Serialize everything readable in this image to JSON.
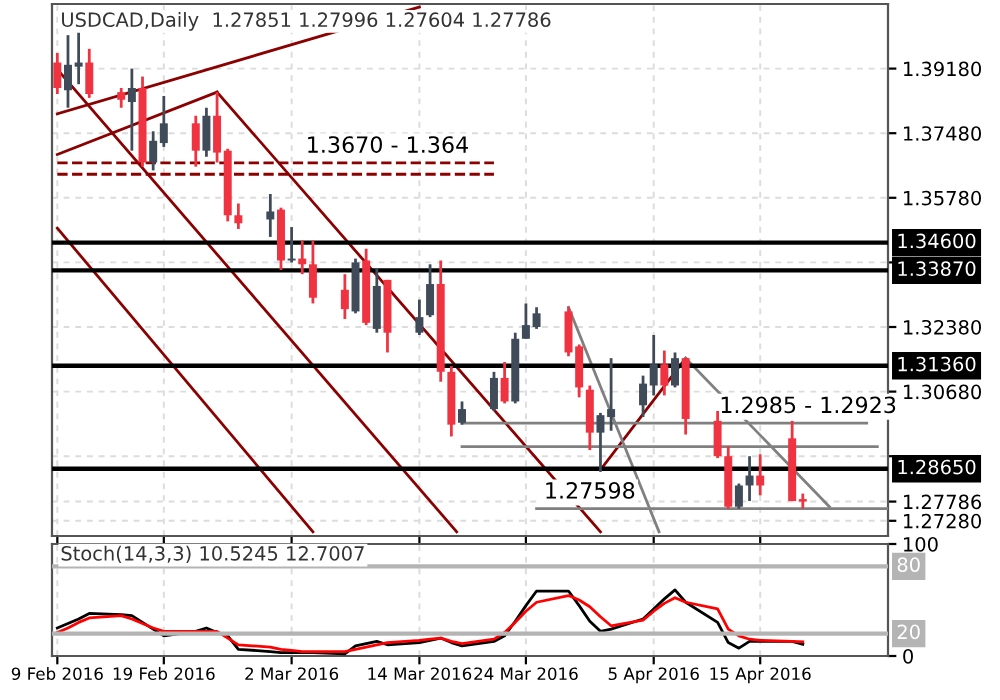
{
  "chart_data": [
    {
      "type": "candlestick",
      "title": "USDCAD,Daily  1.27851 1.27996 1.27604 1.27786",
      "x": [
        "2016-02-09",
        "2016-02-10",
        "2016-02-11",
        "2016-02-12",
        "2016-02-15",
        "2016-02-16",
        "2016-02-17",
        "2016-02-18",
        "2016-02-19",
        "2016-02-22",
        "2016-02-23",
        "2016-02-24",
        "2016-02-25",
        "2016-02-26",
        "2016-02-29",
        "2016-03-01",
        "2016-03-02",
        "2016-03-03",
        "2016-03-04",
        "2016-03-07",
        "2016-03-08",
        "2016-03-09",
        "2016-03-10",
        "2016-03-11",
        "2016-03-14",
        "2016-03-15",
        "2016-03-16",
        "2016-03-17",
        "2016-03-18",
        "2016-03-21",
        "2016-03-22",
        "2016-03-23",
        "2016-03-24",
        "2016-03-25",
        "2016-03-28",
        "2016-03-29",
        "2016-03-30",
        "2016-03-31",
        "2016-04-01",
        "2016-04-04",
        "2016-04-05",
        "2016-04-06",
        "2016-04-07",
        "2016-04-08",
        "2016-04-11",
        "2016-04-12",
        "2016-04-13",
        "2016-04-14",
        "2016-04-15",
        "2016-04-18",
        "2016-04-19"
      ],
      "ohlc": [
        [
          1.3934,
          1.3959,
          1.3851,
          1.3867
        ],
        [
          1.3861,
          1.4006,
          1.3815,
          1.3928
        ],
        [
          1.3923,
          1.4021,
          1.3877,
          1.3934
        ],
        [
          1.3934,
          1.397,
          1.3841,
          1.3851
        ],
        [
          1.3856,
          1.3867,
          1.3815,
          1.3836
        ],
        [
          1.383,
          1.3918,
          1.3702,
          1.3867
        ],
        [
          1.3867,
          1.3897,
          1.366,
          1.3671
        ],
        [
          1.3671,
          1.3753,
          1.365,
          1.3728
        ],
        [
          1.3722,
          1.3846,
          1.3712,
          1.3774
        ],
        [
          1.3774,
          1.3794,
          1.366,
          1.3702
        ],
        [
          1.3702,
          1.3815,
          1.3686,
          1.3794
        ],
        [
          1.3794,
          1.3856,
          1.3671,
          1.3697
        ],
        [
          1.3702,
          1.3707,
          1.3516,
          1.3532
        ],
        [
          1.3532,
          1.3563,
          1.3496,
          1.3511
        ],
        [
          1.3521,
          1.3588,
          1.3475,
          1.3542
        ],
        [
          1.3547,
          1.3552,
          1.3388,
          1.3413
        ],
        [
          1.3413,
          1.3501,
          1.3408,
          1.3418
        ],
        [
          1.3418,
          1.3465,
          1.3377,
          1.3403
        ],
        [
          1.3403,
          1.3465,
          1.33,
          1.3315
        ],
        [
          1.3336,
          1.3377,
          1.3259,
          1.3285
        ],
        [
          1.3279,
          1.3418,
          1.3274,
          1.3408
        ],
        [
          1.3413,
          1.3444,
          1.3243,
          1.3249
        ],
        [
          1.3233,
          1.3393,
          1.3223,
          1.3346
        ],
        [
          1.3362,
          1.3362,
          1.3171,
          1.3223
        ],
        [
          1.3223,
          1.331,
          1.3217,
          1.3264
        ],
        [
          1.3269,
          1.3403,
          1.3264,
          1.3351
        ],
        [
          1.3351,
          1.3413,
          1.3094,
          1.312
        ],
        [
          1.312,
          1.3135,
          1.295,
          1.2981
        ],
        [
          1.2986,
          1.3042,
          1.2981,
          1.3022
        ],
        [
          1.3022,
          1.312,
          1.3017,
          1.3104
        ],
        [
          1.3104,
          1.3146,
          1.3037,
          1.3042
        ],
        [
          1.3042,
          1.3223,
          1.3037,
          1.3207
        ],
        [
          1.3207,
          1.33,
          1.3207,
          1.3243
        ],
        [
          1.3238,
          1.329,
          1.3233,
          1.3274
        ],
        [
          1.3279,
          1.329,
          1.3161,
          1.3171
        ],
        [
          1.3187,
          1.3192,
          1.3053,
          1.3079
        ],
        [
          1.3073,
          1.3084,
          1.2914,
          1.296
        ],
        [
          1.296,
          1.3012,
          1.2857,
          1.3006
        ],
        [
          1.3001,
          1.3156,
          1.2965,
          1.3022
        ],
        [
          1.3032,
          1.311,
          1.3001,
          1.3089
        ],
        [
          1.3084,
          1.3217,
          1.3058,
          1.314
        ],
        [
          1.314,
          1.3176,
          1.3058,
          1.3084
        ],
        [
          1.3084,
          1.3171,
          1.3079,
          1.3156
        ],
        [
          1.3156,
          1.3156,
          1.2955,
          1.2996
        ],
        [
          1.2991,
          1.3017,
          1.2893,
          1.2898
        ],
        [
          1.2898,
          1.2924,
          1.276,
          1.2765
        ],
        [
          1.2765,
          1.2826,
          1.276,
          1.2821
        ],
        [
          1.2821,
          1.2898,
          1.278,
          1.2847
        ],
        [
          1.2847,
          1.2903,
          1.2795,
          1.2821
        ],
        [
          1.2945,
          1.2991,
          1.278,
          1.278
        ],
        [
          1.27851,
          1.27996,
          1.27604,
          1.27786
        ]
      ],
      "colors": [
        "#ef3340",
        "#404b5a",
        "#404b5a",
        "#ef3340",
        "#ef3340",
        "#404b5a",
        "#ef3340",
        "#404b5a",
        "#404b5a",
        "#ef3340",
        "#404b5a",
        "#ef3340",
        "#ef3340",
        "#ef3340",
        "#404b5a",
        "#ef3340",
        "#404b5a",
        "#ef3340",
        "#ef3340",
        "#ef3340",
        "#404b5a",
        "#ef3340",
        "#404b5a",
        "#ef3340",
        "#404b5a",
        "#404b5a",
        "#ef3340",
        "#ef3340",
        "#404b5a",
        "#404b5a",
        "#ef3340",
        "#404b5a",
        "#404b5a",
        "#404b5a",
        "#ef3340",
        "#ef3340",
        "#ef3340",
        "#404b5a",
        "#404b5a",
        "#404b5a",
        "#404b5a",
        "#ef3340",
        "#404b5a",
        "#ef3340",
        "#ef3340",
        "#ef3340",
        "#404b5a",
        "#404b5a",
        "#ef3340",
        "#ef3340",
        "#ef3340"
      ],
      "series": [
        {
          "type": "line",
          "x": [
            "2016-02-09",
            "2016-03-14"
          ],
          "values": [
            1.3799,
            1.408
          ],
          "color": "#8b0000"
        },
        {
          "type": "line",
          "x": [
            "2016-02-09",
            "2016-02-24"
          ],
          "values": [
            1.3692,
            1.3856
          ],
          "color": "#8b0000"
        },
        {
          "type": "line",
          "x": [
            "2016-02-24",
            "2016-03-31"
          ],
          "values": [
            1.3856,
            1.2699
          ],
          "color": "#8b0000"
        },
        {
          "type": "line",
          "x": [
            "2016-02-09",
            "2016-03-04"
          ],
          "values": [
            1.3498,
            1.2699
          ],
          "color": "#8b0000"
        },
        {
          "type": "line",
          "x": [
            "2016-02-09",
            "2016-03-17T12:00"
          ],
          "values": [
            1.3916,
            1.2699
          ],
          "color": "#8b0000"
        },
        {
          "type": "line",
          "x": [
            "2016-03-31",
            "2016-04-08"
          ],
          "values": [
            1.2862,
            1.3156
          ],
          "color": "#8b0000"
        },
        {
          "type": "line",
          "x": [
            "2016-03-28",
            "2016-04-05T12:00"
          ],
          "values": [
            1.329,
            1.2699
          ],
          "color": "#808080"
        },
        {
          "type": "line",
          "x": [
            "2016-04-08",
            "2016-04-21T12:00"
          ],
          "values": [
            1.3156,
            1.2765
          ],
          "color": "#808080"
        },
        {
          "type": "line",
          "x": [
            "2016-02-09",
            "2016-03-21"
          ],
          "values": [
            1.367,
            1.367
          ],
          "color": "#8b0000",
          "line_style": "dashed"
        },
        {
          "type": "line",
          "x": [
            "2016-02-09",
            "2016-03-21"
          ],
          "values": [
            1.364,
            1.364
          ],
          "color": "#8b0000",
          "line_style": "dashed"
        },
        {
          "type": "line",
          "x": [
            "2016-03-18",
            "2016-04-25"
          ],
          "values": [
            1.2985,
            1.2985
          ],
          "color": "#808080"
        },
        {
          "type": "line",
          "x": [
            "2016-03-18",
            "2016-04-26"
          ],
          "values": [
            1.2923,
            1.2923
          ],
          "color": "#808080"
        },
        {
          "type": "line",
          "x": [
            "2016-03-25",
            "2016-04-27"
          ],
          "values": [
            1.276,
            1.276
          ],
          "color": "#808080"
        }
      ],
      "ref_lines": [
        {
          "axis": "y",
          "value": 1.346,
          "label": "1.34600",
          "color": "#000000"
        },
        {
          "axis": "y",
          "value": 1.3387,
          "label": "1.33870",
          "color": "#000000"
        },
        {
          "axis": "y",
          "value": 1.3136,
          "label": "1.31360",
          "color": "#000000"
        },
        {
          "axis": "y",
          "value": 1.2865,
          "label": "1.28650",
          "color": "#000000"
        }
      ],
      "annotations": [
        {
          "text": "1.3670 - 1.364",
          "x": "2016-03-11",
          "y": 1.367
        },
        {
          "text": "1.2985 - 1.2923",
          "x": "2016-04-19T12:00",
          "y": 1.2985
        },
        {
          "text": "1.27598",
          "x": "2016-03-30",
          "y": 1.27598
        }
      ],
      "xlim": [
        "2016-02-08T12:00",
        "2016-04-27"
      ],
      "xticks": [
        {
          "value": "2016-02-09",
          "label": null
        },
        {
          "value": "2016-02-19",
          "label": null
        },
        {
          "value": "2016-03-02",
          "label": null
        },
        {
          "value": "2016-03-14",
          "label": null
        },
        {
          "value": "2016-03-24",
          "label": null
        },
        {
          "value": "2016-04-05",
          "label": null
        },
        {
          "value": "2016-04-15",
          "label": null
        }
      ],
      "ylim": [
        1.2688,
        1.4088
      ],
      "yticks": [
        {
          "value": 1.3918,
          "label": "1.39180"
        },
        {
          "value": 1.3748,
          "label": "1.37480"
        },
        {
          "value": 1.3578,
          "label": "1.35780"
        },
        {
          "value": 1.3408,
          "label": null
        },
        {
          "value": 1.3238,
          "label": "1.32380"
        },
        {
          "value": 1.3068,
          "label": "1.30680"
        },
        {
          "value": 1.2898,
          "label": null
        },
        {
          "value": 1.27786,
          "label": "1.27786"
        },
        {
          "value": 1.2728,
          "label": "1.27280"
        }
      ],
      "grid": true,
      "tick_labels": "y"
    },
    {
      "type": "line",
      "title": "Stoch(14,3,3) 10.5245 12.7007",
      "x": [
        "2016-02-09",
        "2016-02-10",
        "2016-02-11",
        "2016-02-12",
        "2016-02-15",
        "2016-02-16",
        "2016-02-17",
        "2016-02-18",
        "2016-02-19",
        "2016-02-22",
        "2016-02-23",
        "2016-02-24",
        "2016-02-25",
        "2016-02-26",
        "2016-02-29",
        "2016-03-01",
        "2016-03-02",
        "2016-03-03",
        "2016-03-04",
        "2016-03-07",
        "2016-03-08",
        "2016-03-09",
        "2016-03-10",
        "2016-03-11",
        "2016-03-14",
        "2016-03-15",
        "2016-03-16",
        "2016-03-17",
        "2016-03-18",
        "2016-03-21",
        "2016-03-22",
        "2016-03-23",
        "2016-03-24",
        "2016-03-25",
        "2016-03-28",
        "2016-03-29",
        "2016-03-30",
        "2016-03-31",
        "2016-04-01",
        "2016-04-04",
        "2016-04-05",
        "2016-04-06",
        "2016-04-07",
        "2016-04-08",
        "2016-04-11",
        "2016-04-12",
        "2016-04-13",
        "2016-04-14",
        "2016-04-15",
        "2016-04-18",
        "2016-04-19"
      ],
      "series": [
        {
          "color": "#000000",
          "values": [
            25,
            29,
            33,
            38,
            37,
            36,
            30,
            24,
            18,
            22,
            25,
            21,
            18,
            6,
            4,
            3,
            3,
            3,
            3,
            2,
            9,
            11,
            13,
            10,
            12,
            14,
            16,
            12,
            9,
            13,
            18,
            31,
            45,
            58,
            58,
            45,
            31,
            22,
            24,
            33,
            42,
            51,
            59,
            48,
            30,
            12,
            7,
            13,
            13,
            13,
            10.5245
          ]
        },
        {
          "color": "#ff0000",
          "values": [
            21,
            25,
            30,
            34,
            36,
            33,
            29,
            25,
            22,
            22,
            22,
            22,
            16,
            10,
            8,
            6,
            5,
            4,
            4,
            4,
            6,
            8,
            10,
            12,
            14,
            15,
            16,
            13,
            11,
            15,
            21,
            30,
            40,
            48,
            54,
            50,
            44,
            35,
            27,
            32,
            40,
            47,
            52,
            48,
            42,
            24,
            18,
            15,
            14,
            13,
            12.7007
          ]
        }
      ],
      "ref_lines": [
        {
          "axis": "y",
          "value": 80,
          "label": "80",
          "color": "#b4b4b4"
        },
        {
          "axis": "y",
          "value": 20,
          "label": "20",
          "color": "#b4b4b4"
        }
      ],
      "xlim": [
        "2016-02-08T12:00",
        "2016-04-27"
      ],
      "xticks": [
        {
          "value": "2016-02-09",
          "label": "9 Feb 2016"
        },
        {
          "value": "2016-02-19",
          "label": "19 Feb 2016"
        },
        {
          "value": "2016-03-02",
          "label": "2 Mar 2016"
        },
        {
          "value": "2016-03-14",
          "label": "14 Mar 2016"
        },
        {
          "value": "2016-03-24",
          "label": "24 Mar 2016"
        },
        {
          "value": "2016-04-05",
          "label": "5 Apr 2016"
        },
        {
          "value": "2016-04-15",
          "label": "15 Apr 2016"
        }
      ],
      "ylim": [
        0,
        100
      ],
      "yticks": [
        0,
        100
      ],
      "grid": true
    }
  ]
}
